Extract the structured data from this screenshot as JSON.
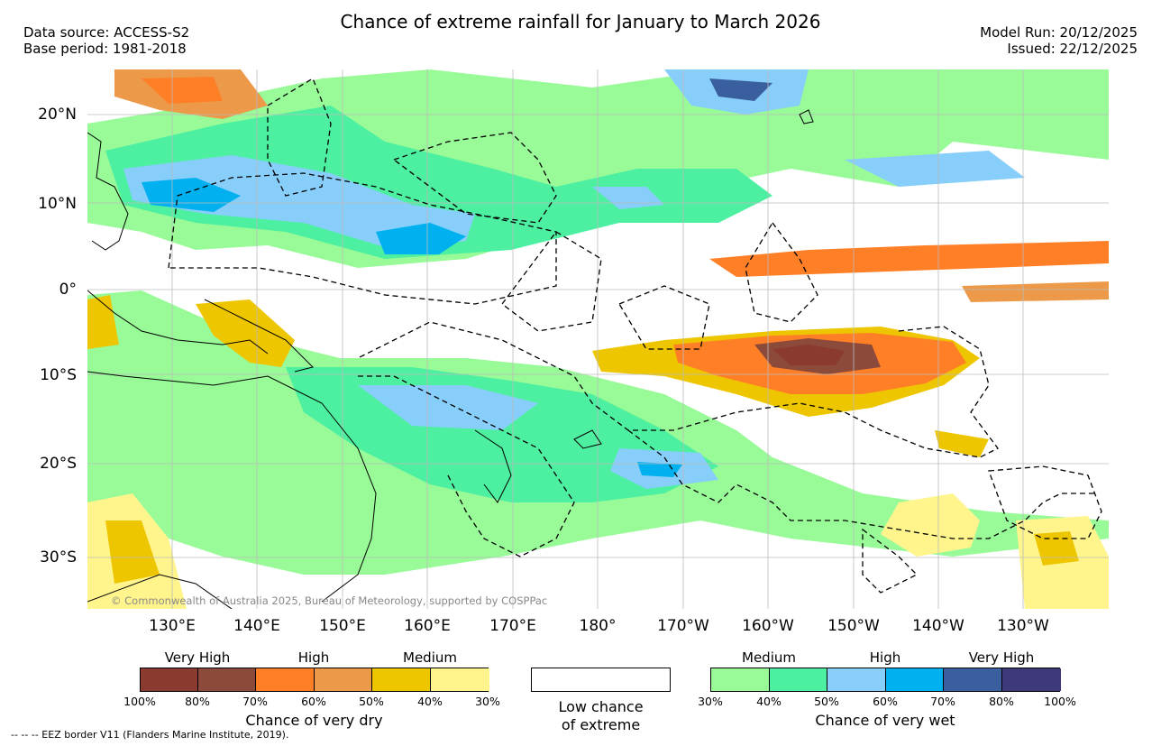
{
  "title": "Chance of extreme rainfall for January to March 2026",
  "header": {
    "data_source": "Data source: ACCESS-S2",
    "base_period": "Base period: 1981-2018",
    "model_run": "Model Run: 20/12/2025",
    "issued": "Issued: 22/12/2025"
  },
  "map": {
    "lat_labels": [
      "20°N",
      "10°N",
      "0°",
      "10°S",
      "20°S",
      "30°S"
    ],
    "lon_labels": [
      "130°E",
      "140°E",
      "150°E",
      "160°E",
      "170°E",
      "180°",
      "170°W",
      "160°W",
      "150°W",
      "140°W",
      "130°W"
    ],
    "copyright": "© Commonwealth of Australia 2025, Bureau of Meteorology, supported by COSPPac"
  },
  "legend_dry": {
    "categories": [
      "Very High",
      "High",
      "Medium"
    ],
    "ticks": [
      "100%",
      "80%",
      "70%",
      "60%",
      "50%",
      "40%",
      "30%"
    ],
    "colors": [
      "#8b3a2f",
      "#8b4a3a",
      "#ff7f27",
      "#ec9a4a",
      "#eec600",
      "#fff58c"
    ],
    "label": "Chance of very dry"
  },
  "legend_low": {
    "line1": "Low chance",
    "line2": "of extreme",
    "color": "#ffffff"
  },
  "legend_wet": {
    "categories": [
      "Medium",
      "High",
      "Very High"
    ],
    "ticks": [
      "30%",
      "40%",
      "50%",
      "60%",
      "70%",
      "80%",
      "100%"
    ],
    "colors": [
      "#98fb98",
      "#4cf0a0",
      "#87cefa",
      "#00b0ef",
      "#3a5f9e",
      "#3e3a7a"
    ],
    "label": "Chance of very wet"
  },
  "footer": {
    "eez_note": "-- -- -- EEZ border V11 (Flanders Marine Institute, 2019)."
  }
}
